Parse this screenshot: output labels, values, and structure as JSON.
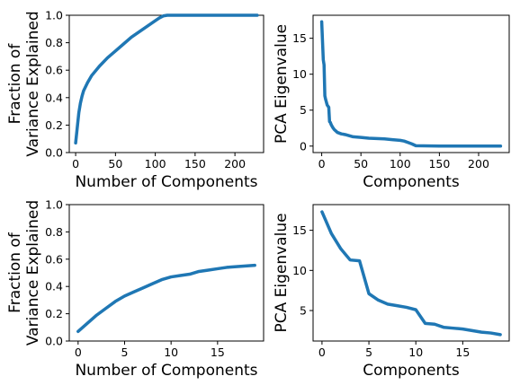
{
  "line_color": "#1f77b4",
  "chart_data": [
    {
      "type": "line",
      "xlabel": "Number of Components",
      "ylabel": "Fraction of\nVariance Explained",
      "xlim": [
        -8,
        236
      ],
      "ylim": [
        0,
        1.0
      ],
      "xticks": [
        0,
        50,
        100,
        150,
        200
      ],
      "yticks": [
        0.0,
        0.2,
        0.4,
        0.6,
        0.8,
        1.0
      ],
      "ytick_decimals": 1,
      "grid": false,
      "series": [
        {
          "x": [
            0,
            2,
            4,
            6,
            8,
            10,
            15,
            20,
            30,
            40,
            50,
            60,
            70,
            80,
            90,
            100,
            105,
            110,
            115,
            120,
            150,
            200,
            228
          ],
          "values": [
            0.07,
            0.18,
            0.29,
            0.36,
            0.41,
            0.45,
            0.51,
            0.56,
            0.63,
            0.69,
            0.74,
            0.79,
            0.84,
            0.88,
            0.92,
            0.96,
            0.98,
            0.995,
            1.0,
            1.0,
            1.0,
            1.0,
            1.0
          ]
        }
      ]
    },
    {
      "type": "line",
      "xlabel": "Components",
      "ylabel": "PCA Eigenvalue",
      "xlim": [
        -11,
        239
      ],
      "ylim": [
        -0.9,
        18.2
      ],
      "xticks": [
        0,
        50,
        100,
        150,
        200
      ],
      "yticks": [
        0,
        5,
        10,
        15
      ],
      "ytick_decimals": 0,
      "grid": false,
      "series": [
        {
          "x": [
            0,
            2,
            3,
            4,
            5,
            7,
            9,
            10,
            11,
            12,
            14,
            16,
            18,
            20,
            25,
            30,
            40,
            50,
            60,
            70,
            80,
            90,
            100,
            105,
            110,
            115,
            120,
            150,
            200,
            228
          ],
          "values": [
            17.3,
            12.0,
            11.3,
            7.0,
            6.5,
            5.7,
            5.4,
            3.4,
            3.3,
            3.0,
            2.6,
            2.3,
            2.1,
            1.9,
            1.7,
            1.6,
            1.3,
            1.2,
            1.1,
            1.05,
            1.0,
            0.9,
            0.8,
            0.7,
            0.5,
            0.3,
            0.05,
            0.0,
            0.0,
            0.0
          ]
        }
      ]
    },
    {
      "type": "line",
      "xlabel": "Number of Components",
      "ylabel": "Fraction of\nVariance Explained",
      "xlim": [
        -0.95,
        19.95
      ],
      "ylim": [
        0,
        1.0
      ],
      "xticks": [
        0,
        5,
        10,
        15
      ],
      "yticks": [
        0.0,
        0.2,
        0.4,
        0.6,
        0.8,
        1.0
      ],
      "ytick_decimals": 1,
      "grid": false,
      "series": [
        {
          "x": [
            0,
            1,
            2,
            3,
            4,
            5,
            6,
            7,
            8,
            9,
            10,
            11,
            12,
            13,
            14,
            15,
            16,
            17,
            18,
            19
          ],
          "values": [
            0.07,
            0.13,
            0.19,
            0.24,
            0.29,
            0.33,
            0.36,
            0.39,
            0.42,
            0.45,
            0.47,
            0.48,
            0.49,
            0.51,
            0.52,
            0.53,
            0.54,
            0.545,
            0.55,
            0.555
          ]
        }
      ]
    },
    {
      "type": "line",
      "xlabel": "Components",
      "ylabel": "PCA Eigenvalue",
      "xlim": [
        -0.95,
        19.95
      ],
      "ylim": [
        1.2,
        18.2
      ],
      "xticks": [
        0,
        5,
        10,
        15
      ],
      "yticks": [
        5,
        10,
        15
      ],
      "ytick_decimals": 0,
      "grid": false,
      "series": [
        {
          "x": [
            0,
            1,
            2,
            3,
            4,
            5,
            6,
            7,
            8,
            9,
            10,
            11,
            12,
            13,
            14,
            15,
            16,
            17,
            18,
            19
          ],
          "values": [
            17.3,
            14.6,
            12.7,
            11.3,
            11.2,
            7.1,
            6.3,
            5.8,
            5.6,
            5.4,
            5.1,
            3.4,
            3.3,
            2.9,
            2.8,
            2.7,
            2.5,
            2.3,
            2.2,
            2.0
          ]
        }
      ]
    }
  ]
}
